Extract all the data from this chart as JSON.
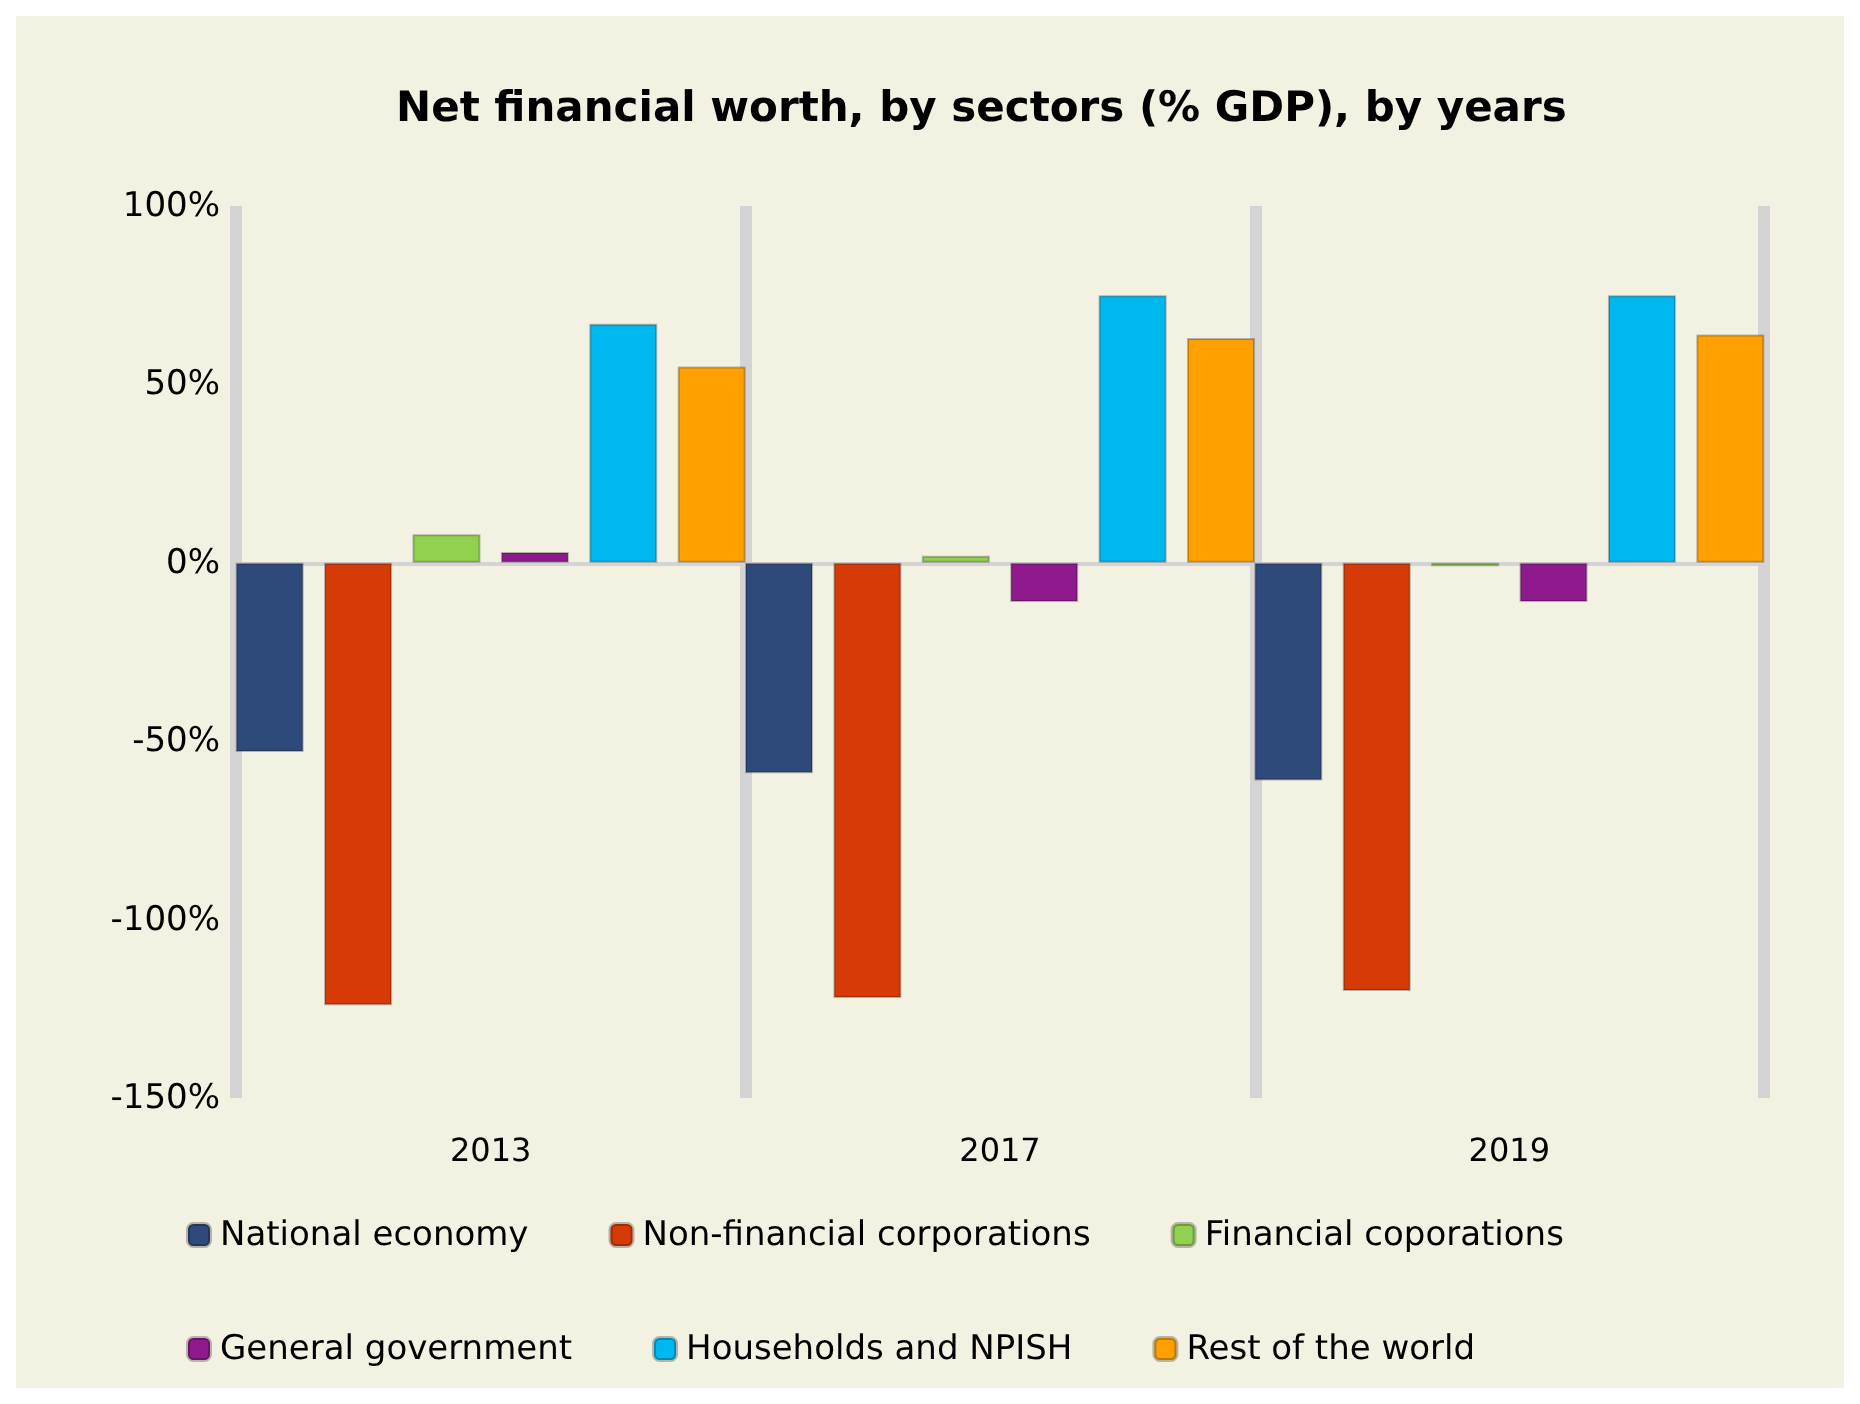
{
  "chart_data": {
    "type": "bar",
    "title": "Net financial worth, by sectors (% GDP), by years",
    "categories": [
      "2013",
      "2017",
      "2019"
    ],
    "series": [
      {
        "name": "National economy",
        "color": "#2e4a7a",
        "values": [
          -53,
          -59,
          -61
        ]
      },
      {
        "name": "Non-financial corporations",
        "color": "#d63a06",
        "values": [
          -124,
          -122,
          -120
        ]
      },
      {
        "name": "Financial coporations",
        "color": "#92d050",
        "values": [
          8,
          2,
          -1
        ]
      },
      {
        "name": "General government",
        "color": "#8e1a8e",
        "values": [
          3,
          -11,
          -11
        ]
      },
      {
        "name": "Households and NPISH",
        "color": "#00b8f0",
        "values": [
          67,
          75,
          75
        ]
      },
      {
        "name": "Rest of the world",
        "color": "#ffa000",
        "values": [
          55,
          63,
          64
        ]
      }
    ],
    "ylim": [
      -150,
      100
    ],
    "yticks": [
      {
        "value": -150,
        "label": "-150%"
      },
      {
        "value": -100,
        "label": "-100%"
      },
      {
        "value": -50,
        "label": "-50%"
      },
      {
        "value": 0,
        "label": "0%"
      },
      {
        "value": 50,
        "label": "50%"
      },
      {
        "value": 100,
        "label": "100%"
      }
    ],
    "grid": "x",
    "legend": "bottom"
  }
}
